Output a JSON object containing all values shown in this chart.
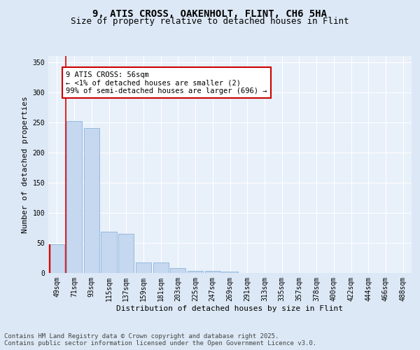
{
  "title_line1": "9, ATIS CROSS, OAKENHOLT, FLINT, CH6 5HA",
  "title_line2": "Size of property relative to detached houses in Flint",
  "xlabel": "Distribution of detached houses by size in Flint",
  "ylabel": "Number of detached properties",
  "categories": [
    "49sqm",
    "71sqm",
    "93sqm",
    "115sqm",
    "137sqm",
    "159sqm",
    "181sqm",
    "203sqm",
    "225sqm",
    "247sqm",
    "269sqm",
    "291sqm",
    "313sqm",
    "335sqm",
    "357sqm",
    "378sqm",
    "400sqm",
    "422sqm",
    "444sqm",
    "466sqm",
    "488sqm"
  ],
  "values": [
    48,
    252,
    240,
    69,
    65,
    18,
    18,
    8,
    4,
    3,
    2,
    0,
    0,
    0,
    0,
    0,
    0,
    0,
    0,
    0,
    0
  ],
  "bar_color": "#c5d8f0",
  "bar_edge_color": "#8ab4d9",
  "highlight_color": "#dd0000",
  "annotation_text": "9 ATIS CROSS: 56sqm\n← <1% of detached houses are smaller (2)\n99% of semi-detached houses are larger (696) →",
  "annotation_box_facecolor": "#ffffff",
  "annotation_box_edgecolor": "#cc0000",
  "ylim": [
    0,
    360
  ],
  "yticks": [
    0,
    50,
    100,
    150,
    200,
    250,
    300,
    350
  ],
  "background_color": "#dce8f5",
  "plot_bg_color": "#e8f0fa",
  "footer_text": "Contains HM Land Registry data © Crown copyright and database right 2025.\nContains public sector information licensed under the Open Government Licence v3.0.",
  "title_fontsize": 10,
  "subtitle_fontsize": 9,
  "axis_label_fontsize": 8,
  "tick_fontsize": 7,
  "annotation_fontsize": 7.5,
  "footer_fontsize": 6.5
}
